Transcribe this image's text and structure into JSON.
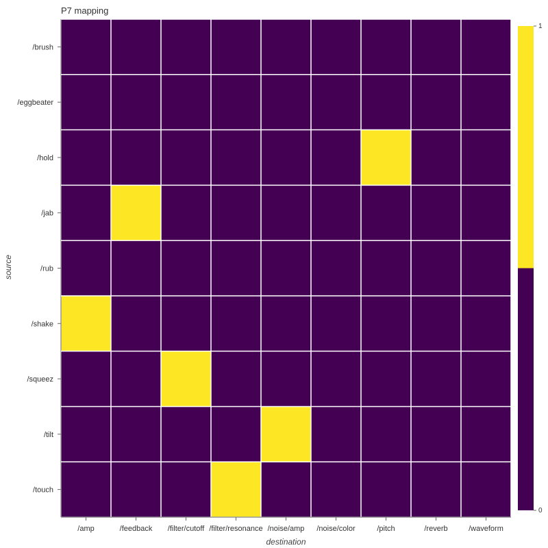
{
  "chart_data": {
    "type": "heatmap",
    "title": "P7 mapping",
    "xlabel": "destination",
    "ylabel": "source",
    "x_categories": [
      "/amp",
      "/feedback",
      "/filter/cutoff",
      "/filter/resonance",
      "/noise/amp",
      "/noise/color",
      "/pitch",
      "/reverb",
      "/waveform"
    ],
    "y_categories": [
      "/brush",
      "/eggbeater",
      "/hold",
      "/jab",
      "/rub",
      "/shake",
      "/squeez",
      "/tilt",
      "/touch"
    ],
    "values": [
      [
        0,
        0,
        0,
        0,
        0,
        0,
        0,
        0,
        0
      ],
      [
        0,
        0,
        0,
        0,
        0,
        0,
        0,
        0,
        0
      ],
      [
        0,
        0,
        0,
        0,
        0,
        0,
        1,
        0,
        0
      ],
      [
        0,
        1,
        0,
        0,
        0,
        0,
        0,
        0,
        0
      ],
      [
        0,
        0,
        0,
        0,
        0,
        0,
        0,
        0,
        0
      ],
      [
        1,
        0,
        0,
        0,
        0,
        0,
        0,
        0,
        0
      ],
      [
        0,
        0,
        1,
        0,
        0,
        0,
        0,
        0,
        0
      ],
      [
        0,
        0,
        0,
        0,
        1,
        0,
        0,
        0,
        0
      ],
      [
        0,
        0,
        0,
        1,
        0,
        0,
        0,
        0,
        0
      ]
    ],
    "colorbar": {
      "min": 0,
      "max": 1,
      "tick_labels": [
        "0",
        "1"
      ],
      "colors": {
        "low": "#440154",
        "high": "#fde725"
      }
    },
    "grid_color": "#ffffff",
    "grid": true
  }
}
